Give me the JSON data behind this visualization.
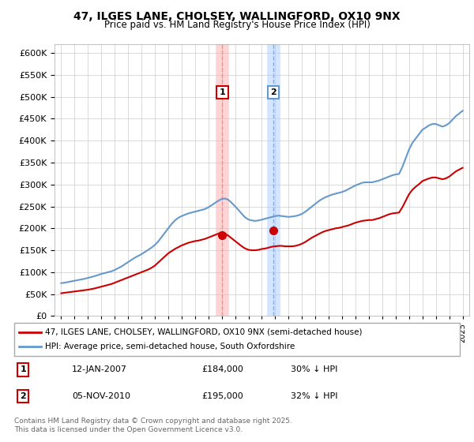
{
  "title": "47, ILGES LANE, CHOLSEY, WALLINGFORD, OX10 9NX",
  "subtitle": "Price paid vs. HM Land Registry's House Price Index (HPI)",
  "legend_line1": "47, ILGES LANE, CHOLSEY, WALLINGFORD, OX10 9NX (semi-detached house)",
  "legend_line2": "HPI: Average price, semi-detached house, South Oxfordshire",
  "footer": "Contains HM Land Registry data © Crown copyright and database right 2025.\nThis data is licensed under the Open Government Licence v3.0.",
  "sale1_label": "1",
  "sale1_date": "12-JAN-2007",
  "sale1_price": "£184,000",
  "sale1_hpi": "30% ↓ HPI",
  "sale2_label": "2",
  "sale2_date": "05-NOV-2010",
  "sale2_price": "£195,000",
  "sale2_hpi": "32% ↓ HPI",
  "sale1_year": 2007.04,
  "sale1_value": 184000,
  "sale2_year": 2010.84,
  "sale2_value": 195000,
  "red_color": "#cc0000",
  "blue_color": "#6699cc",
  "vline_color_1": "#ffaaaa",
  "vline_color_2": "#aaccff",
  "background_color": "#ffffff",
  "grid_color": "#cccccc",
  "ylim": [
    0,
    620000
  ],
  "yticks": [
    0,
    50000,
    100000,
    150000,
    200000,
    250000,
    300000,
    350000,
    400000,
    450000,
    500000,
    550000,
    600000
  ],
  "xlim": [
    1994.5,
    2025.5
  ],
  "hpi_years": [
    1995,
    1995.25,
    1995.5,
    1995.75,
    1996,
    1996.25,
    1996.5,
    1996.75,
    1997,
    1997.25,
    1997.5,
    1997.75,
    1998,
    1998.25,
    1998.5,
    1998.75,
    1999,
    1999.25,
    1999.5,
    1999.75,
    2000,
    2000.25,
    2000.5,
    2000.75,
    2001,
    2001.25,
    2001.5,
    2001.75,
    2002,
    2002.25,
    2002.5,
    2002.75,
    2003,
    2003.25,
    2003.5,
    2003.75,
    2004,
    2004.25,
    2004.5,
    2004.75,
    2005,
    2005.25,
    2005.5,
    2005.75,
    2006,
    2006.25,
    2006.5,
    2006.75,
    2007,
    2007.25,
    2007.5,
    2007.75,
    2008,
    2008.25,
    2008.5,
    2008.75,
    2009,
    2009.25,
    2009.5,
    2009.75,
    2010,
    2010.25,
    2010.5,
    2010.75,
    2011,
    2011.25,
    2011.5,
    2011.75,
    2012,
    2012.25,
    2012.5,
    2012.75,
    2013,
    2013.25,
    2013.5,
    2013.75,
    2014,
    2014.25,
    2014.5,
    2014.75,
    2015,
    2015.25,
    2015.5,
    2015.75,
    2016,
    2016.25,
    2016.5,
    2016.75,
    2017,
    2017.25,
    2017.5,
    2017.75,
    2018,
    2018.25,
    2018.5,
    2018.75,
    2019,
    2019.25,
    2019.5,
    2019.75,
    2020,
    2020.25,
    2020.5,
    2020.75,
    2021,
    2021.25,
    2021.5,
    2021.75,
    2022,
    2022.25,
    2022.5,
    2022.75,
    2023,
    2023.25,
    2023.5,
    2023.75,
    2024,
    2024.25,
    2024.5,
    2024.75,
    2025
  ],
  "hpi_values": [
    75000,
    76000,
    77500,
    79000,
    80500,
    82000,
    83500,
    85000,
    87000,
    89000,
    91000,
    93500,
    96000,
    98000,
    100000,
    102000,
    105000,
    109000,
    113000,
    118000,
    123000,
    128000,
    133000,
    137000,
    141000,
    146000,
    151000,
    156000,
    162000,
    170000,
    180000,
    190000,
    200000,
    210000,
    218000,
    224000,
    228000,
    231000,
    234000,
    236000,
    238000,
    240000,
    242000,
    244000,
    248000,
    253000,
    258000,
    263000,
    267000,
    268000,
    265000,
    258000,
    250000,
    242000,
    233000,
    225000,
    220000,
    218000,
    217000,
    218000,
    220000,
    222000,
    224000,
    226000,
    228000,
    229000,
    228000,
    227000,
    226000,
    227000,
    228000,
    230000,
    233000,
    238000,
    244000,
    250000,
    256000,
    262000,
    267000,
    271000,
    274000,
    277000,
    279000,
    281000,
    283000,
    286000,
    290000,
    294000,
    298000,
    301000,
    304000,
    305000,
    305000,
    305000,
    307000,
    309000,
    312000,
    315000,
    318000,
    321000,
    323000,
    324000,
    340000,
    360000,
    380000,
    395000,
    405000,
    415000,
    425000,
    430000,
    435000,
    438000,
    438000,
    435000,
    432000,
    435000,
    440000,
    448000,
    456000,
    462000,
    468000
  ],
  "price_years": [
    1995,
    1995.25,
    1995.5,
    1995.75,
    1996,
    1996.25,
    1996.5,
    1996.75,
    1997,
    1997.25,
    1997.5,
    1997.75,
    1998,
    1998.25,
    1998.5,
    1998.75,
    1999,
    1999.25,
    1999.5,
    1999.75,
    2000,
    2000.25,
    2000.5,
    2000.75,
    2001,
    2001.25,
    2001.5,
    2001.75,
    2002,
    2002.25,
    2002.5,
    2002.75,
    2003,
    2003.25,
    2003.5,
    2003.75,
    2004,
    2004.25,
    2004.5,
    2004.75,
    2005,
    2005.25,
    2005.5,
    2005.75,
    2006,
    2006.25,
    2006.5,
    2006.75,
    2007,
    2007.25,
    2007.5,
    2007.75,
    2008,
    2008.25,
    2008.5,
    2008.75,
    2009,
    2009.25,
    2009.5,
    2009.75,
    2010,
    2010.25,
    2010.5,
    2010.75,
    2011,
    2011.25,
    2011.5,
    2011.75,
    2012,
    2012.25,
    2012.5,
    2012.75,
    2013,
    2013.25,
    2013.5,
    2013.75,
    2014,
    2014.25,
    2014.5,
    2014.75,
    2015,
    2015.25,
    2015.5,
    2015.75,
    2016,
    2016.25,
    2016.5,
    2016.75,
    2017,
    2017.25,
    2017.5,
    2017.75,
    2018,
    2018.25,
    2018.5,
    2018.75,
    2019,
    2019.25,
    2019.5,
    2019.75,
    2020,
    2020.25,
    2020.5,
    2020.75,
    2021,
    2021.25,
    2021.5,
    2021.75,
    2022,
    2022.25,
    2022.5,
    2022.75,
    2023,
    2023.25,
    2023.5,
    2023.75,
    2024,
    2024.25,
    2024.5,
    2024.75,
    2025
  ],
  "price_values": [
    52000,
    53000,
    54000,
    55000,
    56000,
    57000,
    58000,
    59000,
    60000,
    61500,
    63000,
    65000,
    67000,
    69000,
    71000,
    73000,
    76000,
    79000,
    82000,
    85000,
    88000,
    91000,
    94000,
    97000,
    100000,
    103000,
    106000,
    110000,
    115000,
    122000,
    129000,
    136000,
    143000,
    148000,
    153000,
    157000,
    161000,
    164000,
    167000,
    169000,
    171000,
    172000,
    174000,
    176000,
    179000,
    182000,
    185000,
    188000,
    191000,
    188000,
    183000,
    177000,
    171000,
    165000,
    159000,
    154000,
    151000,
    150000,
    150000,
    151000,
    153000,
    154000,
    156000,
    158000,
    159000,
    160000,
    160000,
    159000,
    159000,
    159000,
    160000,
    162000,
    165000,
    169000,
    174000,
    179000,
    183000,
    187000,
    191000,
    194000,
    196000,
    198000,
    200000,
    201000,
    203000,
    205000,
    207000,
    210000,
    213000,
    215000,
    217000,
    218000,
    219000,
    219000,
    221000,
    223000,
    226000,
    229000,
    232000,
    234000,
    235000,
    236000,
    248000,
    263000,
    278000,
    288000,
    295000,
    301000,
    308000,
    311000,
    314000,
    316000,
    316000,
    314000,
    312000,
    314000,
    318000,
    324000,
    330000,
    334000,
    338000
  ]
}
